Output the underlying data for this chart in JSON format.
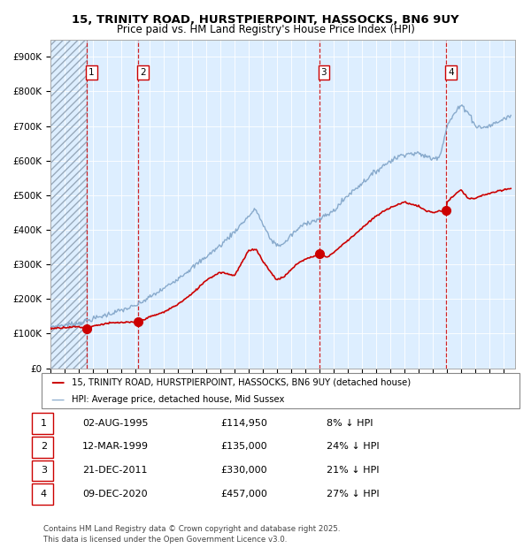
{
  "title1": "15, TRINITY ROAD, HURSTPIERPOINT, HASSOCKS, BN6 9UY",
  "title2": "Price paid vs. HM Land Registry's House Price Index (HPI)",
  "ylim": [
    0,
    950000
  ],
  "yticks": [
    0,
    100000,
    200000,
    300000,
    400000,
    500000,
    600000,
    700000,
    800000,
    900000
  ],
  "ytick_labels": [
    "£0",
    "£100K",
    "£200K",
    "£300K",
    "£400K",
    "£500K",
    "£600K",
    "£700K",
    "£800K",
    "£900K"
  ],
  "xlim_start": 1993.0,
  "xlim_end": 2025.8,
  "hatch_end_year": 1995.58,
  "sale_dates": [
    1995.583,
    1999.194,
    2011.972,
    2020.939
  ],
  "sale_prices": [
    114950,
    135000,
    330000,
    457000
  ],
  "sale_labels": [
    "1",
    "2",
    "3",
    "4"
  ],
  "sale_date_strs": [
    "02-AUG-1995",
    "12-MAR-1999",
    "21-DEC-2011",
    "09-DEC-2020"
  ],
  "sale_price_strs": [
    "£114,950",
    "£135,000",
    "£330,000",
    "£457,000"
  ],
  "sale_pct_strs": [
    "8% ↓ HPI",
    "24% ↓ HPI",
    "21% ↓ HPI",
    "27% ↓ HPI"
  ],
  "price_line_color": "#cc0000",
  "hpi_line_color": "#88aacc",
  "background_color": "#ddeeff",
  "legend_label_price": "15, TRINITY ROAD, HURSTPIERPOINT, HASSOCKS, BN6 9UY (detached house)",
  "legend_label_hpi": "HPI: Average price, detached house, Mid Sussex",
  "footer": "Contains HM Land Registry data © Crown copyright and database right 2025.\nThis data is licensed under the Open Government Licence v3.0.",
  "hpi_anchors_x": [
    1993,
    1995,
    1997,
    1999,
    2001,
    2003,
    2005,
    2006,
    2007,
    2007.5,
    2008,
    2008.5,
    2009,
    2009.5,
    2010,
    2011,
    2012,
    2013,
    2014,
    2015,
    2016,
    2017,
    2018,
    2019,
    2020,
    2020.5,
    2021,
    2021.5,
    2022,
    2022.5,
    2023,
    2023.5,
    2024,
    2024.5,
    2025,
    2025.5
  ],
  "hpi_anchors_y": [
    120000,
    130000,
    155000,
    180000,
    230000,
    290000,
    355000,
    395000,
    440000,
    460000,
    415000,
    375000,
    355000,
    360000,
    385000,
    420000,
    430000,
    455000,
    500000,
    535000,
    570000,
    600000,
    620000,
    620000,
    605000,
    615000,
    700000,
    735000,
    760000,
    740000,
    700000,
    695000,
    700000,
    710000,
    720000,
    730000
  ],
  "price_anchors_x": [
    1993,
    1994,
    1995.0,
    1995.583,
    1996,
    1997,
    1998,
    1999.0,
    1999.194,
    2000,
    2001,
    2002,
    2003,
    2004,
    2005,
    2006,
    2007,
    2007.5,
    2008,
    2008.5,
    2009,
    2009.5,
    2010,
    2010.5,
    2011,
    2011.972,
    2012,
    2012.5,
    2013,
    2014,
    2015,
    2016,
    2017,
    2018,
    2019,
    2019.5,
    2020.0,
    2020.939,
    2021,
    2021.5,
    2022,
    2022.5,
    2023,
    2023.5,
    2024,
    2024.5,
    2025,
    2025.5
  ],
  "price_anchors_y": [
    115000,
    118000,
    120000,
    114950,
    122000,
    130000,
    132000,
    133000,
    135000,
    148000,
    162000,
    185000,
    215000,
    255000,
    278000,
    268000,
    340000,
    345000,
    310000,
    280000,
    255000,
    265000,
    285000,
    305000,
    315000,
    330000,
    335000,
    320000,
    335000,
    370000,
    405000,
    440000,
    465000,
    480000,
    468000,
    455000,
    450000,
    457000,
    480000,
    500000,
    515000,
    490000,
    490000,
    500000,
    505000,
    510000,
    515000,
    520000
  ]
}
